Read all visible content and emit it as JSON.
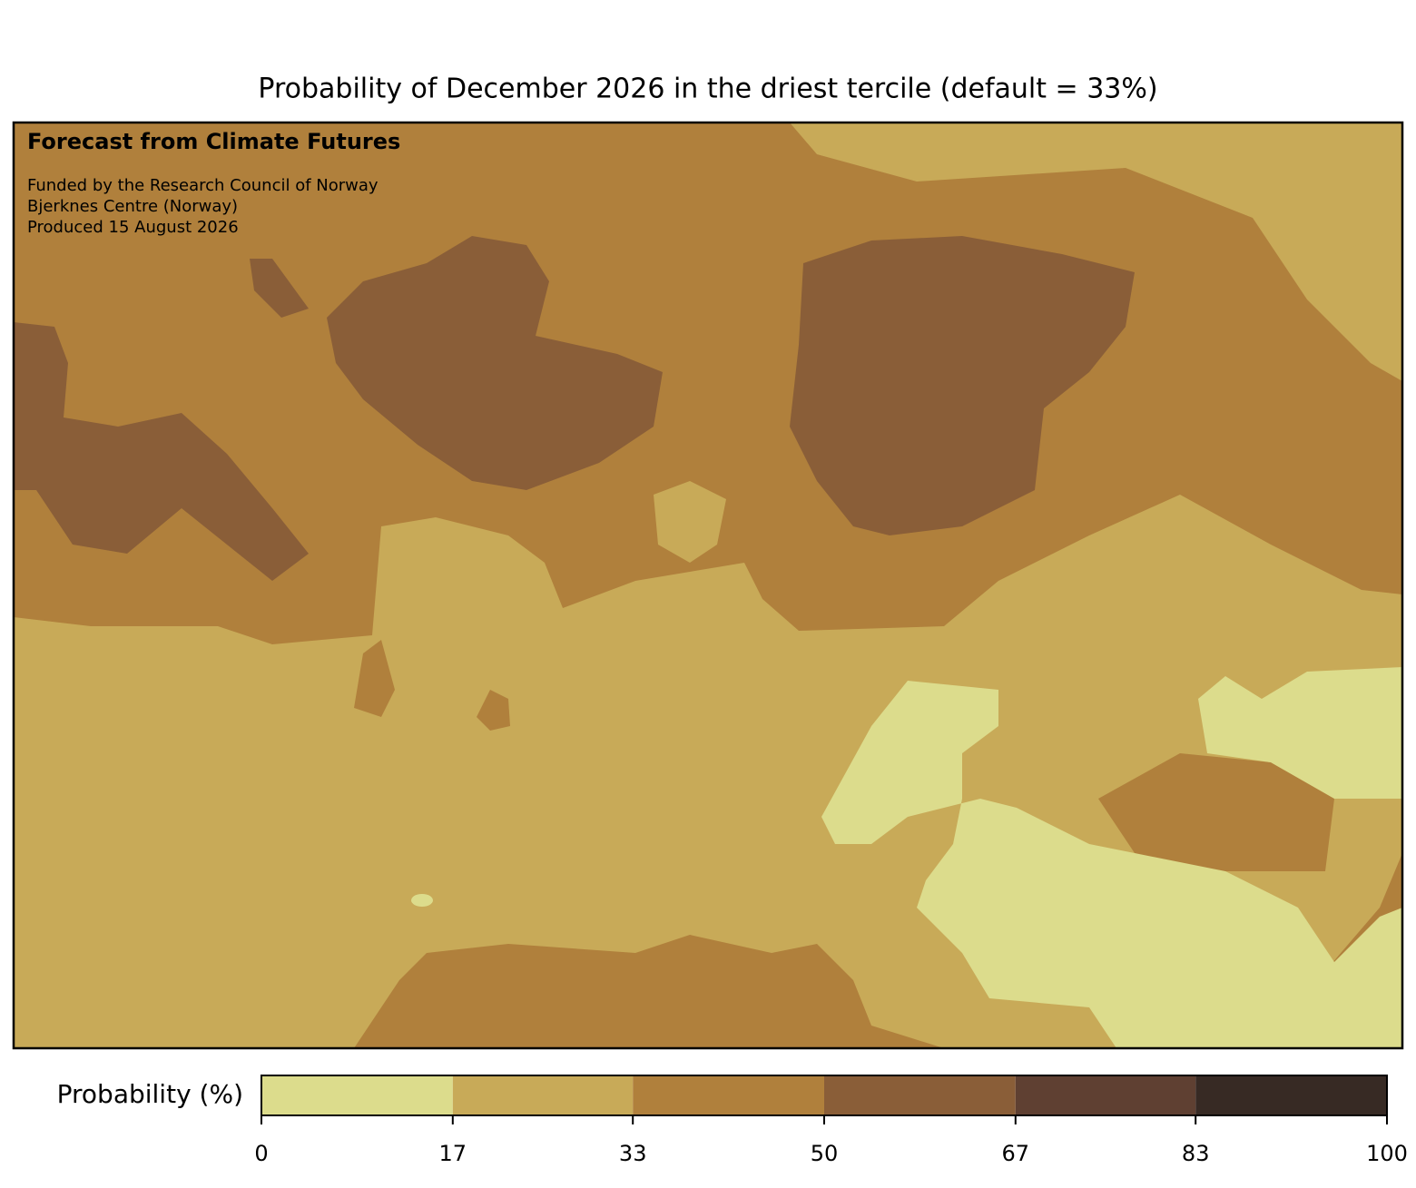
{
  "chart_data": {
    "type": "contour-map",
    "title": "Probability of December 2026 in the driest tercile (default = 33%)",
    "annotations": {
      "heading": "Forecast from Climate Futures",
      "lines": [
        "Funded by the Research Council of Norway",
        "Bjerknes Centre (Norway)",
        "Produced 15 August 2026"
      ]
    },
    "colorbar": {
      "label": "Probability (%)",
      "bins": [
        0,
        17,
        33,
        50,
        67,
        83,
        100
      ],
      "colors": [
        "#dcdc8c",
        "#c8aa58",
        "#b0803c",
        "#8a5e38",
        "#5f4032",
        "#372a24"
      ],
      "ticks": [
        0,
        17,
        33,
        50,
        67,
        83,
        100
      ]
    }
  }
}
